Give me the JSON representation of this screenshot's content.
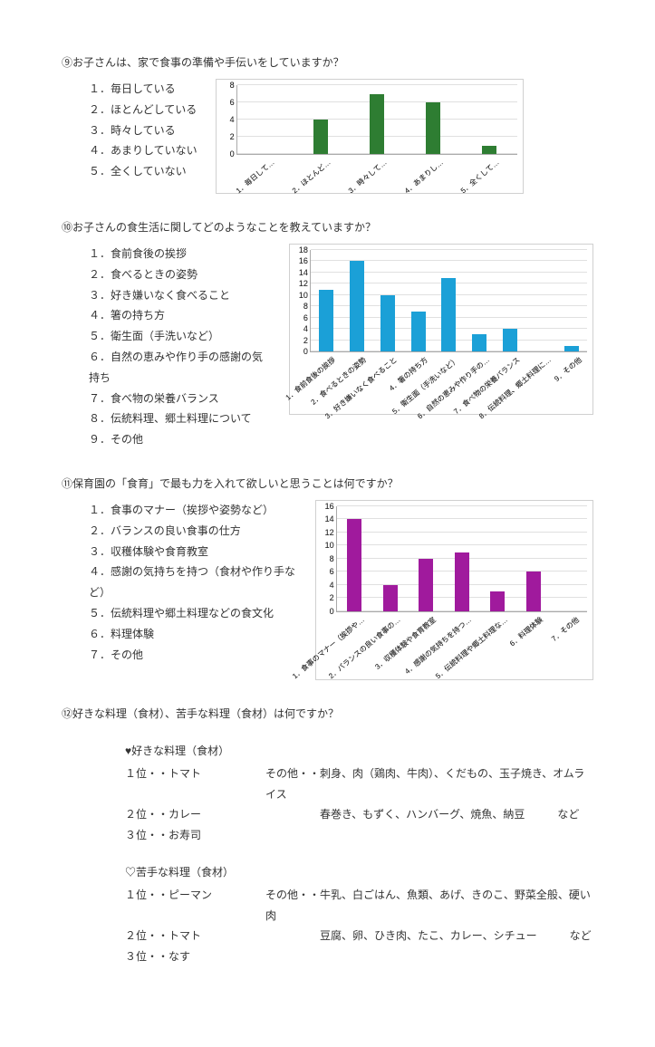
{
  "q9": {
    "title": "⑨お子さんは、家で食事の準備や手伝いをしていますか？",
    "options": [
      "１．毎日している",
      "２．ほとんどしている",
      "３．時々している",
      "４．あまりしていない",
      "５．全くしていない"
    ],
    "chart": {
      "type": "bar",
      "bar_color": "#2e7d32",
      "grid_color": "#e0e0e0",
      "ylim": [
        0,
        8
      ],
      "ytick_step": 2,
      "categories": [
        "1．毎日して…",
        "2．ほとんど…",
        "3．時々して…",
        "4．あまりし…",
        "5．全くして…"
      ],
      "values": [
        0,
        4,
        7,
        6,
        1
      ]
    }
  },
  "q10": {
    "title": "⑩お子さんの食生活に関してどのようなことを教えていますか？",
    "options": [
      "１．食前食後の挨拶",
      "２．食べるときの姿勢",
      "３．好き嫌いなく食べること",
      "４．箸の持ち方",
      "５．衛生面（手洗いなど）",
      "６．自然の恵みや作り手の感謝の気持ち",
      "７．食べ物の栄養バランス",
      "８．伝統料理、郷土料理について",
      "９．その他"
    ],
    "chart": {
      "type": "bar",
      "bar_color": "#1ba0d7",
      "grid_color": "#e0e0e0",
      "ylim": [
        0,
        18
      ],
      "ytick_step": 2,
      "categories": [
        "1．食前食後の挨拶",
        "2．食べるときの姿勢",
        "3．好き嫌いなく食べること",
        "4．箸の持ち方",
        "5．衛生面（手洗いなど）",
        "6．自然の恵みや作り手の…",
        "7．食べ物の栄養バランス",
        "8．伝統料理、郷土料理に…",
        "9．その他"
      ],
      "values": [
        11,
        16,
        10,
        7,
        13,
        3,
        4,
        0,
        1
      ]
    }
  },
  "q11": {
    "title": "⑪保育園の「食育」で最も力を入れて欲しいと思うことは何ですか？",
    "options": [
      "１．食事のマナー（挨拶や姿勢など）",
      "２．バランスの良い食事の仕方",
      "３．収穫体験や食育教室",
      "４．感謝の気持ちを持つ（食材や作り手など）",
      "５．伝統料理や郷土料理などの食文化",
      "６．料理体験",
      "７．その他"
    ],
    "chart": {
      "type": "bar",
      "bar_color": "#a01a9d",
      "grid_color": "#e0e0e0",
      "ylim": [
        0,
        16
      ],
      "ytick_step": 2,
      "categories": [
        "1．食事のマナー（挨拶や…",
        "2．バランスの良い食事の…",
        "3．収穫体験や食育教室",
        "4．感謝の気持ちを持つ…",
        "5．伝統料理や郷土料理な…",
        "6．料理体験",
        "7．その他"
      ],
      "values": [
        14,
        4,
        8,
        9,
        3,
        6,
        0
      ]
    }
  },
  "q12": {
    "title": "⑫好きな料理（食材）、苦手な料理（食材）は何ですか？",
    "likes": {
      "title": "♥好きな料理（食材）",
      "ranks": [
        "１位・・トマト",
        "２位・・カレー",
        "３位・・お寿司"
      ],
      "others": [
        "その他・・刺身、肉（鶏肉、牛肉）、くだもの、玉子焼き、オムライス",
        "　　　　　春巻き、もずく、ハンバーグ、焼魚、納豆　　　など",
        ""
      ]
    },
    "dislikes": {
      "title": "♡苦手な料理（食材）",
      "ranks": [
        "１位・・ピーマン",
        "２位・・トマト",
        "３位・・なす"
      ],
      "others": [
        "その他・・牛乳、白ごはん、魚類、あげ、きのこ、野菜全般、硬い肉",
        "　　　　　豆腐、卵、ひき肉、たこ、カレー、シチュー　　　など",
        ""
      ]
    }
  }
}
